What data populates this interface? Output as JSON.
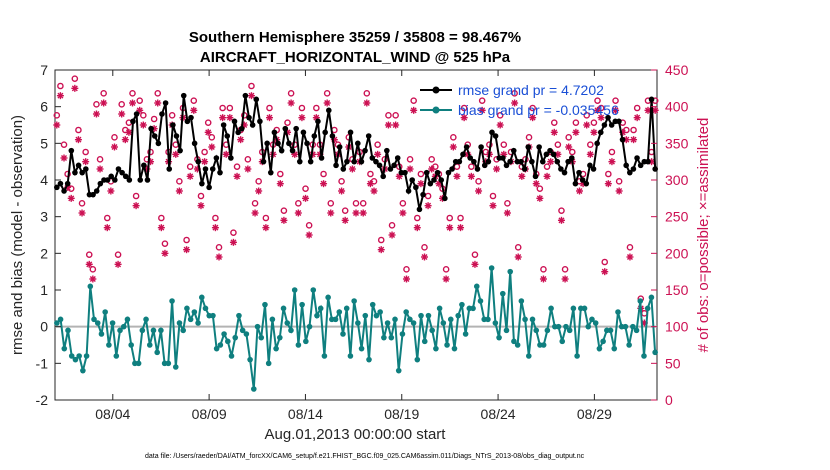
{
  "chart_data": {
    "type": "line",
    "title_line1": "Southern Hemisphere 35259 / 35808 = 98.467%",
    "title_line2": "AIRCRAFT_HORIZONTAL_WIND @ 525 hPa",
    "xlabel": "Aug.01,2013 00:00:00 start",
    "ylabel_left": "rmse and bias (model - observation)",
    "ylabel_right": "# of obs: o=possible; ×=assimilated",
    "footnote": "data file: /Users/raeder/DAI/ATM_forcXX/CAM6_setup/f.e21.FHIST_BGC.f09_025.CAM6assim.011/Diags_NTrS_2013-08/obs_diag_output.nc",
    "x_ticks": [
      "08/04",
      "08/09",
      "08/14",
      "08/19",
      "08/24",
      "08/29"
    ],
    "x_tick_days": [
      4,
      9,
      14,
      19,
      24,
      29
    ],
    "xlim_days": [
      1,
      32.25
    ],
    "y_left_ticks": [
      "7",
      "6",
      "5",
      "4",
      "3",
      "2",
      "1",
      "0",
      "-1",
      "-2"
    ],
    "ylim_left": [
      -2,
      7
    ],
    "y_right_ticks": [
      "450",
      "400",
      "350",
      "300",
      "250",
      "200",
      "150",
      "100",
      "50",
      "0"
    ],
    "ylim_right": [
      0,
      450
    ],
    "zero_line": 0,
    "series": [
      {
        "name": "rmse grand pr = 4.7202",
        "color": "#000000",
        "axis": "left",
        "values": [
          3.8,
          3.9,
          3.7,
          3.9,
          4.8,
          4.2,
          4.4,
          4.2,
          4.3,
          3.6,
          3.6,
          3.7,
          3.9,
          4.0,
          4.0,
          4.1,
          4.0,
          4.3,
          4.2,
          4.1,
          4.0,
          5.6,
          5.8,
          4.0,
          4.4,
          4.0,
          5.4,
          5.2,
          5.0,
          5.8,
          6.1,
          4.3,
          5.5,
          5.2,
          4.8,
          6.3,
          5.6,
          5.7,
          5.0,
          4.5,
          3.9,
          4.3,
          3.8,
          4.3,
          4.6,
          4.2,
          5.5,
          5.2,
          4.6,
          5.6,
          5.3,
          5.4,
          6.3,
          5.7,
          5.5,
          6.2,
          5.6,
          4.5,
          5.0,
          4.2,
          5.3,
          5.0,
          4.8,
          5.4,
          5.0,
          4.8,
          5.4,
          4.5,
          5.3,
          5.0,
          4.5,
          5.2,
          5.6,
          4.6,
          5.3,
          5.9,
          5.2,
          4.4,
          4.9,
          4.3,
          4.5,
          5.3,
          4.5,
          5.0,
          4.5,
          4.8,
          5.2,
          4.6,
          4.5,
          4.4,
          4.1,
          4.8,
          4.3,
          4.4,
          4.6,
          4.2,
          4.2,
          3.7,
          4.0,
          3.8,
          3.2,
          3.6,
          4.2,
          3.9,
          4.0,
          4.2,
          4.0,
          3.5,
          4.2,
          4.3,
          4.5,
          4.5,
          4.7,
          4.9,
          4.6,
          4.5,
          4.3,
          4.9,
          4.4,
          4.5,
          5.3,
          5.2,
          4.6,
          4.6,
          4.4,
          4.5,
          4.8,
          4.5,
          4.5,
          4.3,
          4.9,
          4.5,
          4.1,
          4.9,
          4.5,
          4.7,
          4.8,
          4.7,
          4.5,
          4.3,
          4.2,
          4.5,
          4.6,
          3.9,
          4.2,
          4.0,
          3.9,
          4.4,
          4.3,
          5.0,
          5.3,
          5.5,
          5.7,
          5.5,
          5.6,
          5.6,
          5.1,
          4.4,
          4.2,
          4.3,
          4.6,
          4.4,
          4.5,
          4.5,
          6.2,
          4.3
        ],
        "marker": "filled-circle"
      },
      {
        "name": "bias grand pr = -0.035456",
        "color": "#0f7f7f",
        "axis": "left",
        "values": [
          0.1,
          0.2,
          -0.6,
          -0.1,
          -0.8,
          -0.9,
          -0.8,
          -1.2,
          -0.8,
          1.1,
          0.2,
          0.1,
          -0.2,
          0.4,
          -0.5,
          0.1,
          -0.8,
          -0.1,
          0.0,
          0.2,
          -0.5,
          -1.0,
          -1.0,
          -0.1,
          0.2,
          -0.5,
          -0.1,
          -0.7,
          -0.1,
          -1.0,
          -1.0,
          0.7,
          -1.1,
          0.1,
          -0.1,
          0.5,
          0.2,
          0.4,
          0.1,
          0.8,
          0.5,
          0.3,
          0.3,
          -0.6,
          -0.5,
          -0.2,
          -0.4,
          -0.8,
          -0.3,
          0.3,
          -0.1,
          -0.2,
          -0.9,
          -1.7,
          0.0,
          -0.3,
          0.6,
          -1.0,
          0.2,
          -0.6,
          -0.3,
          0.5,
          0.1,
          -0.1,
          1.0,
          -0.5,
          0.6,
          -0.4,
          0.0,
          1.0,
          0.3,
          0.5,
          -0.8,
          0.8,
          0.2,
          0.2,
          0.4,
          -0.2,
          0.5,
          -0.8,
          0.7,
          0.1,
          -0.6,
          0.3,
          -0.9,
          0.6,
          0.3,
          0.4,
          -0.3,
          0.1,
          -0.3,
          0.2,
          -1.2,
          -0.2,
          0.4,
          0.2,
          0.1,
          -0.9,
          0.3,
          -0.4,
          0.3,
          -0.1,
          -0.6,
          0.5,
          0.1,
          -0.5,
          0.2,
          -0.6,
          0.3,
          0.6,
          -0.2,
          0.5,
          0.5,
          1.1,
          0.7,
          0.2,
          0.2,
          1.6,
          0.1,
          -0.3,
          0.9,
          -0.1,
          1.5,
          -0.4,
          -0.5,
          0.7,
          0.2,
          -0.8,
          0.2,
          -0.1,
          -0.5,
          -0.5,
          -0.1,
          0.5,
          0.0,
          0.0,
          -0.4,
          0.0,
          -0.1,
          0.5,
          -0.8,
          0.5,
          0.5,
          0.0,
          0.2,
          0.1,
          -0.6,
          -0.4,
          -0.1,
          -0.1,
          -0.6,
          0.4,
          0.0,
          0.0,
          -0.5,
          0.0,
          -0.1,
          0.7,
          -0.8,
          0.5,
          0.8,
          -0.7
        ],
        "marker": "filled-circle"
      },
      {
        "name": "possible",
        "color": "#cc1153",
        "axis": "right",
        "marker": "open-circle",
        "values": [
          380,
          420,
          340,
          300,
          280,
          430,
          360,
          260,
          330,
          190,
          170,
          395,
          320,
          410,
          240,
          290,
          350,
          190,
          395,
          360,
          370,
          410,
          270,
          400,
          380,
          320,
          330,
          375,
          410,
          240,
          205,
          330,
          380,
          340,
          290,
          390,
          210,
          310,
          400,
          320,
          270,
          330,
          370,
          350,
          240,
          200,
          390,
          340,
          390,
          220,
          310,
          360,
          380,
          320,
          420,
          260,
          290,
          330,
          240,
          390,
          340,
          360,
          300,
          250,
          370,
          410,
          340,
          260,
          390,
          280,
          230,
          340,
          390,
          340,
          300,
          410,
          260,
          360,
          340,
          290,
          250,
          350,
          320,
          260,
          330,
          260,
          410,
          300,
          290,
          340,
          210,
          320,
          380,
          230,
          380,
          310,
          260,
          170,
          320,
          400,
          240,
          300,
          200,
          270,
          320,
          310,
          300,
          280,
          170,
          240,
          350,
          310,
          240,
          390,
          340,
          310,
          190,
          290,
          400,
          330,
          340,
          270,
          320,
          380,
          340,
          260,
          330,
          410,
          200,
          310,
          320,
          350,
          390,
          300,
          280,
          170,
          310,
          330,
          370,
          340,
          250,
          170,
          350,
          330,
          370,
          290,
          300,
          380,
          340,
          370,
          400,
          390,
          180,
          300,
          330,
          400,
          290,
          370,
          360,
          200,
          360,
          390,
          130,
          110,
          400,
          330,
          400
        ]
      },
      {
        "name": "assimilated",
        "color": "#cc1153",
        "axis": "right",
        "marker": "asterisk",
        "values": [
          375,
          415,
          330,
          290,
          275,
          425,
          355,
          255,
          325,
          185,
          165,
          390,
          315,
          405,
          235,
          285,
          345,
          185,
          390,
          355,
          365,
          405,
          265,
          395,
          375,
          315,
          325,
          370,
          405,
          235,
          200,
          325,
          375,
          335,
          285,
          385,
          205,
          305,
          395,
          315,
          265,
          325,
          365,
          345,
          235,
          195,
          385,
          335,
          385,
          215,
          305,
          355,
          375,
          315,
          415,
          255,
          285,
          325,
          235,
          385,
          335,
          355,
          295,
          245,
          365,
          405,
          335,
          255,
          385,
          275,
          225,
          335,
          385,
          335,
          295,
          405,
          255,
          355,
          335,
          285,
          245,
          345,
          315,
          255,
          325,
          255,
          405,
          295,
          285,
          335,
          205,
          315,
          375,
          225,
          375,
          305,
          255,
          165,
          315,
          395,
          235,
          295,
          195,
          265,
          315,
          305,
          295,
          275,
          165,
          235,
          345,
          305,
          235,
          385,
          335,
          305,
          185,
          285,
          395,
          325,
          335,
          265,
          315,
          375,
          335,
          255,
          325,
          405,
          195,
          305,
          315,
          345,
          385,
          295,
          275,
          165,
          305,
          325,
          365,
          335,
          245,
          165,
          345,
          325,
          365,
          285,
          295,
          375,
          335,
          365,
          395,
          385,
          175,
          295,
          325,
          395,
          285,
          365,
          355,
          195,
          355,
          385,
          125,
          105,
          395,
          325,
          395
        ]
      }
    ],
    "legend_position": "top-right"
  }
}
